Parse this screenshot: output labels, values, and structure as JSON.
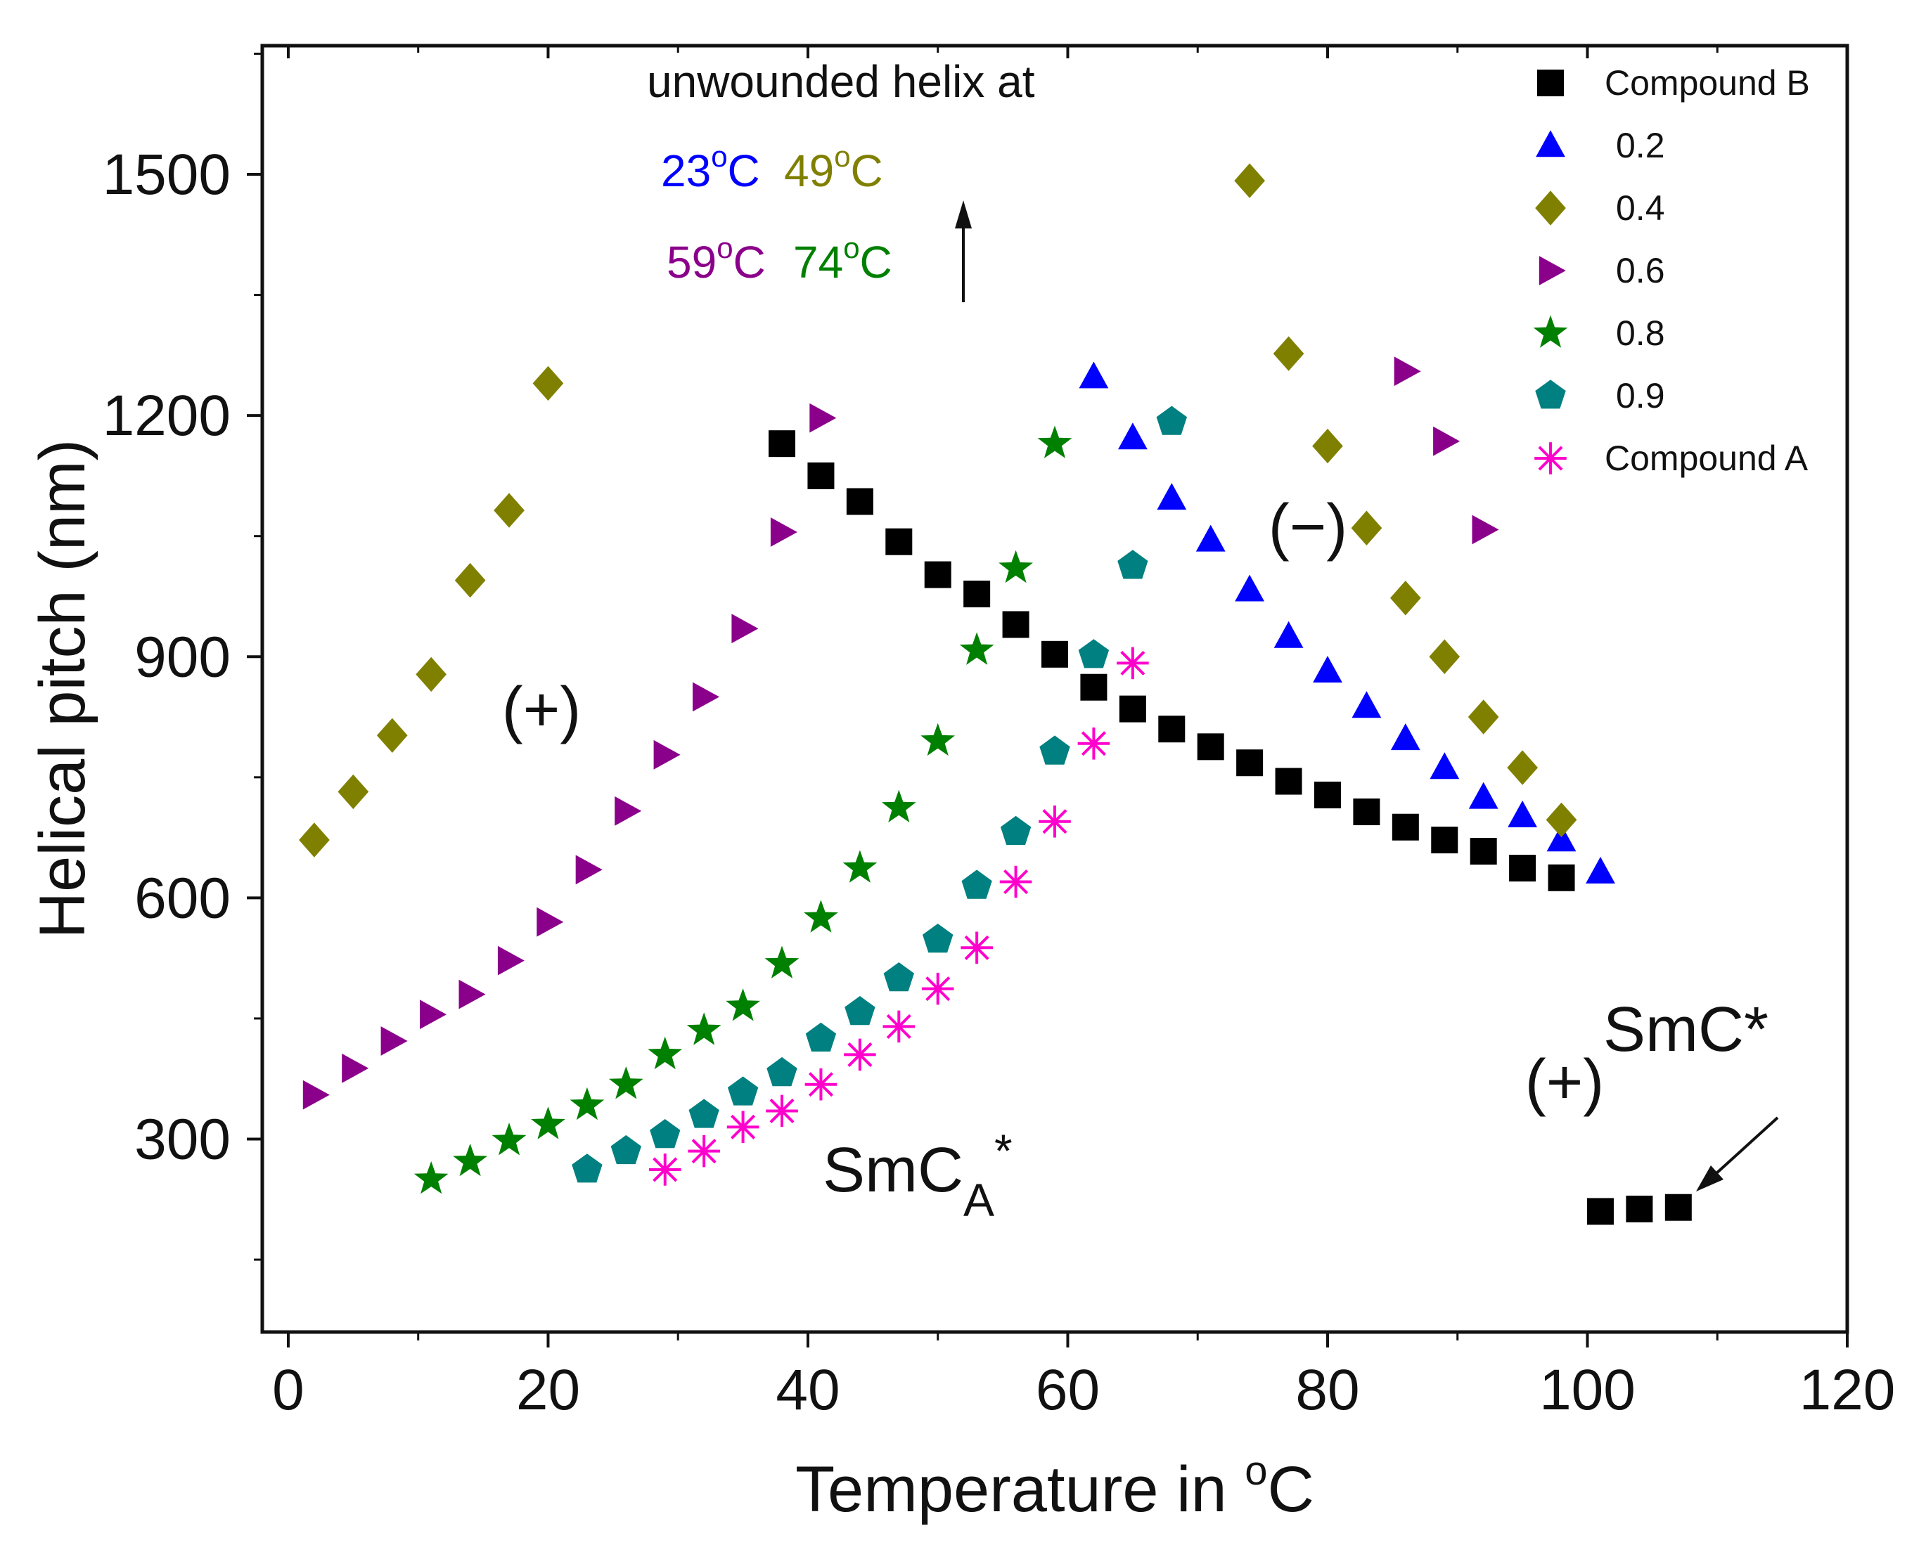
{
  "chart_data": {
    "type": "scatter",
    "title": "",
    "xlabel": "Temperature in ",
    "xlabel_sup": "o",
    "xlabel_unit": "C",
    "ylabel": "Helical pitch (nm)",
    "xlim": [
      -2,
      120
    ],
    "ylim": [
      60,
      1660
    ],
    "xticks": [
      0,
      20,
      40,
      60,
      80,
      100,
      120
    ],
    "xtick_labels": [
      "0",
      "20",
      "40",
      "60",
      "80",
      "100",
      "120"
    ],
    "yticks": [
      300,
      600,
      900,
      1200,
      1500
    ],
    "ytick_labels": [
      "300",
      "600",
      "900",
      "1200",
      "1500"
    ],
    "grid": false,
    "legend_position": "top-right",
    "series": [
      {
        "name": "Compound B",
        "marker": "square",
        "color": "#000000",
        "points": [
          [
            38,
            1165
          ],
          [
            41,
            1125
          ],
          [
            44,
            1093
          ],
          [
            47,
            1043
          ],
          [
            50,
            1002
          ],
          [
            53,
            978
          ],
          [
            56,
            940
          ],
          [
            59,
            903
          ],
          [
            62,
            862
          ],
          [
            65,
            835
          ],
          [
            68,
            810
          ],
          [
            71,
            788
          ],
          [
            74,
            768
          ],
          [
            77,
            745
          ],
          [
            80,
            728
          ],
          [
            83,
            707
          ],
          [
            86,
            688
          ],
          [
            89,
            672
          ],
          [
            92,
            658
          ],
          [
            95,
            637
          ],
          [
            98,
            625
          ],
          [
            101,
            210
          ],
          [
            104,
            213
          ],
          [
            107,
            215
          ]
        ]
      },
      {
        "name": "0.2",
        "marker": "triangle-up",
        "color": "#0000ff",
        "points": [
          [
            62,
            1248
          ],
          [
            65,
            1172
          ],
          [
            68,
            1097
          ],
          [
            71,
            1045
          ],
          [
            74,
            983
          ],
          [
            77,
            925
          ],
          [
            80,
            882
          ],
          [
            83,
            838
          ],
          [
            86,
            798
          ],
          [
            89,
            762
          ],
          [
            92,
            725
          ],
          [
            95,
            702
          ],
          [
            98,
            672
          ],
          [
            101,
            632
          ]
        ]
      },
      {
        "name": "0.4",
        "marker": "diamond",
        "color": "#808000",
        "points": [
          [
            2,
            672
          ],
          [
            5,
            732
          ],
          [
            8,
            802
          ],
          [
            11,
            878
          ],
          [
            14,
            995
          ],
          [
            17,
            1082
          ],
          [
            20,
            1240
          ],
          [
            74,
            1492
          ],
          [
            77,
            1277
          ],
          [
            80,
            1162
          ],
          [
            83,
            1060
          ],
          [
            86,
            973
          ],
          [
            89,
            900
          ],
          [
            92,
            825
          ],
          [
            95,
            762
          ],
          [
            98,
            697
          ]
        ]
      },
      {
        "name": "0.6",
        "marker": "triangle-right",
        "color": "#8b008b",
        "points": [
          [
            2,
            355
          ],
          [
            5,
            388
          ],
          [
            8,
            422
          ],
          [
            11,
            455
          ],
          [
            14,
            480
          ],
          [
            17,
            522
          ],
          [
            20,
            570
          ],
          [
            23,
            635
          ],
          [
            26,
            708
          ],
          [
            29,
            778
          ],
          [
            32,
            850
          ],
          [
            35,
            935
          ],
          [
            38,
            1055
          ],
          [
            41,
            1197
          ],
          [
            86,
            1255
          ],
          [
            89,
            1168
          ],
          [
            92,
            1058
          ]
        ]
      },
      {
        "name": "0.8",
        "marker": "star",
        "color": "#008000",
        "points": [
          [
            11,
            250
          ],
          [
            14,
            272
          ],
          [
            17,
            298
          ],
          [
            20,
            318
          ],
          [
            23,
            342
          ],
          [
            26,
            368
          ],
          [
            29,
            405
          ],
          [
            32,
            435
          ],
          [
            35,
            465
          ],
          [
            38,
            518
          ],
          [
            41,
            575
          ],
          [
            44,
            637
          ],
          [
            47,
            712
          ],
          [
            50,
            795
          ],
          [
            53,
            908
          ],
          [
            56,
            1010
          ],
          [
            59,
            1165
          ]
        ]
      },
      {
        "name": "0.9",
        "marker": "pentagon",
        "color": "#008080",
        "points": [
          [
            23,
            262
          ],
          [
            26,
            285
          ],
          [
            29,
            305
          ],
          [
            32,
            330
          ],
          [
            35,
            358
          ],
          [
            38,
            382
          ],
          [
            41,
            425
          ],
          [
            44,
            458
          ],
          [
            47,
            500
          ],
          [
            50,
            548
          ],
          [
            53,
            615
          ],
          [
            56,
            682
          ],
          [
            59,
            782
          ],
          [
            62,
            902
          ],
          [
            65,
            1013
          ],
          [
            68,
            1192
          ]
        ]
      },
      {
        "name": "Compound A",
        "marker": "asterisk",
        "color": "#ff00cc",
        "points": [
          [
            29,
            262
          ],
          [
            32,
            285
          ],
          [
            35,
            315
          ],
          [
            38,
            335
          ],
          [
            41,
            368
          ],
          [
            44,
            405
          ],
          [
            47,
            440
          ],
          [
            50,
            487
          ],
          [
            53,
            538
          ],
          [
            56,
            620
          ],
          [
            59,
            695
          ],
          [
            62,
            792
          ],
          [
            65,
            892
          ]
        ]
      }
    ],
    "annotations": {
      "unwound_title": "unwounded helix at",
      "unwound_temps": [
        {
          "deg": "23",
          "unit": "C",
          "color": "#0000ff"
        },
        {
          "deg": "49",
          "unit": "C",
          "color": "#808000"
        },
        {
          "deg": "59",
          "unit": "C",
          "color": "#8b008b"
        },
        {
          "deg": "74",
          "unit": "C",
          "color": "#008000"
        }
      ],
      "degree_sup": "o",
      "plus_left": "(+)",
      "minus_mid": "(−)",
      "plus_right": "(+)",
      "smca_main": "SmC",
      "smca_sub": "A",
      "smca_star": "*",
      "smc_label": "SmC*"
    }
  }
}
